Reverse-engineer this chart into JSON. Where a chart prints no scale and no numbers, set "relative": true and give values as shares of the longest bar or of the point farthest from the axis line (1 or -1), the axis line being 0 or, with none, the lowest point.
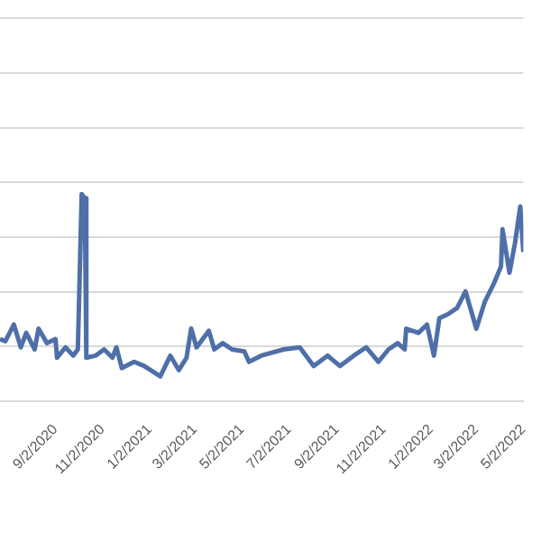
{
  "chart_data": {
    "type": "line",
    "relative": true,
    "grid": "y",
    "marker": "none",
    "line_style": "solid",
    "legend": false,
    "xlim": [
      "2020-06-22",
      "2022-05-02"
    ],
    "xticks": [
      {
        "value": "2020-09-02",
        "label": "9/2/2020"
      },
      {
        "value": "2020-11-02",
        "label": "11/2/2020"
      },
      {
        "value": "2021-01-02",
        "label": "1/2/2021"
      },
      {
        "value": "2021-03-02",
        "label": "3/2/2021"
      },
      {
        "value": "2021-05-02",
        "label": "5/2/2021"
      },
      {
        "value": "2021-07-02",
        "label": "7/2/2021"
      },
      {
        "value": "2021-09-02",
        "label": "9/2/2021"
      },
      {
        "value": "2021-11-02",
        "label": "11/2/2021"
      },
      {
        "value": "2022-01-02",
        "label": "1/2/2022"
      },
      {
        "value": "2022-03-02",
        "label": "3/2/2022"
      },
      {
        "value": "2022-05-02",
        "label": "5/2/2022"
      }
    ],
    "x": [
      "2020-06-22",
      "2020-06-29",
      "2020-07-10",
      "2020-07-19",
      "2020-07-26",
      "2020-08-06",
      "2020-08-11",
      "2020-08-22",
      "2020-09-02",
      "2020-09-04",
      "2020-09-15",
      "2020-09-25",
      "2020-10-01",
      "2020-10-06",
      "2020-10-10",
      "2020-10-12",
      "2020-10-24",
      "2020-11-04",
      "2020-11-15",
      "2020-11-20",
      "2020-11-27",
      "2020-12-13",
      "2020-12-26",
      "2021-01-16",
      "2021-01-29",
      "2021-02-09",
      "2021-02-19",
      "2021-02-25",
      "2021-03-04",
      "2021-03-20",
      "2021-03-27",
      "2021-04-07",
      "2021-04-19",
      "2021-05-05",
      "2021-05-11",
      "2021-05-27",
      "2021-06-25",
      "2021-07-16",
      "2021-08-03",
      "2021-08-21",
      "2021-09-06",
      "2021-09-24",
      "2021-10-10",
      "2021-10-26",
      "2021-11-08",
      "2021-11-20",
      "2021-11-29",
      "2021-12-01",
      "2021-12-17",
      "2021-12-28",
      "2022-01-06",
      "2022-01-13",
      "2022-01-24",
      "2022-02-05",
      "2022-02-16",
      "2022-03-02",
      "2022-03-13",
      "2022-03-25",
      "2022-04-03",
      "2022-04-05",
      "2022-04-14",
      "2022-04-21",
      "2022-04-28",
      "2022-05-02"
    ],
    "series": [
      {
        "color": "#4e6fa8",
        "values": [
          0.3,
          0.29,
          0.37,
          0.26,
          0.33,
          0.25,
          0.35,
          0.28,
          0.3,
          0.21,
          0.26,
          0.22,
          0.25,
          1.0,
          0.98,
          0.21,
          0.22,
          0.25,
          0.21,
          0.26,
          0.16,
          0.19,
          0.17,
          0.12,
          0.22,
          0.15,
          0.21,
          0.35,
          0.26,
          0.34,
          0.25,
          0.28,
          0.25,
          0.24,
          0.19,
          0.22,
          0.25,
          0.26,
          0.17,
          0.22,
          0.17,
          0.22,
          0.26,
          0.19,
          0.25,
          0.28,
          0.25,
          0.35,
          0.33,
          0.37,
          0.22,
          0.4,
          0.42,
          0.45,
          0.53,
          0.35,
          0.48,
          0.57,
          0.65,
          0.83,
          0.62,
          0.76,
          0.94,
          0.72
        ]
      }
    ]
  }
}
